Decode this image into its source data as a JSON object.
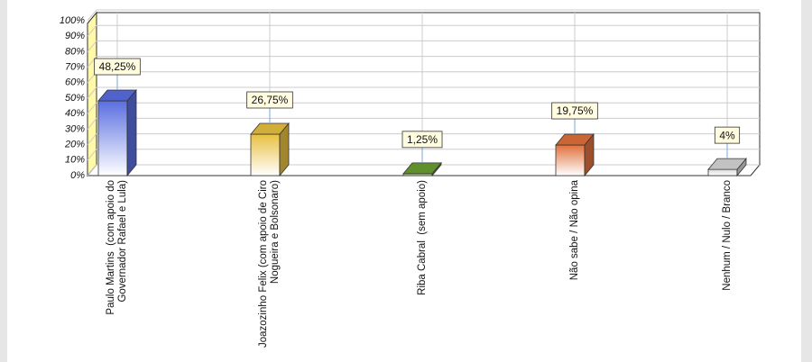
{
  "chart_data": {
    "type": "bar3d",
    "categories": [
      "Paulo Martins  (com apoio do Governador Rafael e Lula)",
      "Joazozinho Felix (com apoio de Ciro Nogueira e Bolsonaro)",
      "Riba Cabral  (sem apoio)",
      "Não sabe / Não opina",
      "Nenhum / Nulo / Branco"
    ],
    "values": [
      48.25,
      26.75,
      1.25,
      19.75,
      4
    ],
    "value_labels": [
      "48,25%",
      "26,75%",
      "1,25%",
      "19,75%",
      "4%"
    ],
    "colors": [
      "#5a6ee0",
      "#e8c040",
      "#6aa030",
      "#e0703c",
      "#d8d8d8"
    ],
    "ylim": [
      0,
      100
    ],
    "yticks": [
      {
        "value": 0,
        "label": "0%"
      },
      {
        "value": 10,
        "label": "10%"
      },
      {
        "value": 20,
        "label": "20%"
      },
      {
        "value": 30,
        "label": "30%"
      },
      {
        "value": 40,
        "label": "40%"
      },
      {
        "value": 50,
        "label": "50%"
      },
      {
        "value": 60,
        "label": "60%"
      },
      {
        "value": 70,
        "label": "70%"
      },
      {
        "value": 80,
        "label": "80%"
      },
      {
        "value": 90,
        "label": "90%"
      },
      {
        "value": 100,
        "label": "100%"
      }
    ],
    "grid": true
  }
}
